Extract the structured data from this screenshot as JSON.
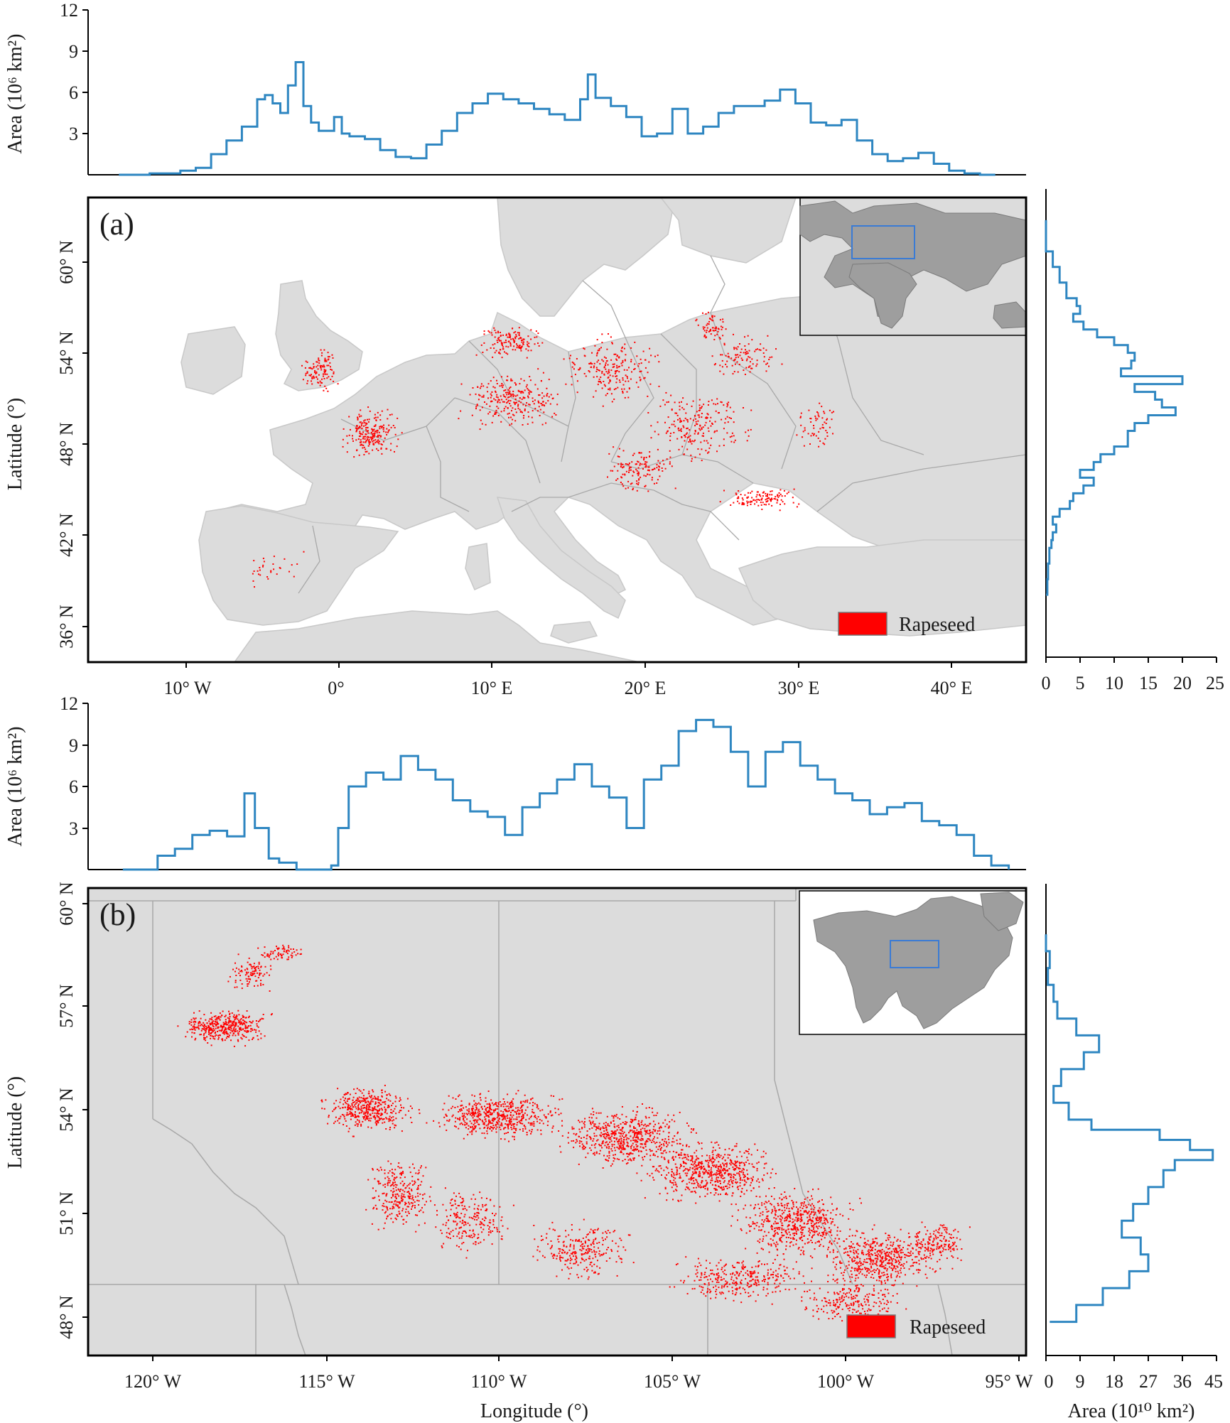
{
  "figure": {
    "panels": [
      {
        "panel_label": "(a)",
        "legend_label": "Rapeseed",
        "legend_color": "#ff0000",
        "map_lon_ticks": [
          "10° W",
          "0°",
          "10° E",
          "20° E",
          "30° E",
          "40° E"
        ],
        "map_lat_ticks": [
          "60° N",
          "54° N",
          "48° N",
          "42° N",
          "36° N"
        ],
        "map_lat_label": "Latitude (°)",
        "top_ylabel": "Area (10⁶ km²)",
        "top_yticks": [
          "3",
          "6",
          "9",
          "12"
        ],
        "right_xticks": [
          "0",
          "5",
          "10",
          "15",
          "20",
          "25"
        ],
        "inset": "world overview (Europe highlighted)"
      },
      {
        "panel_label": "(b)",
        "legend_label": "Rapeseed",
        "legend_color": "#ff0000",
        "map_lon_ticks": [
          "120° W",
          "115° W",
          "110° W",
          "105° W",
          "100° W",
          "95° W"
        ],
        "map_lat_ticks": [
          "60° N",
          "57° N",
          "54° N",
          "51° N",
          "48° N"
        ],
        "map_lat_label": "Latitude (°)",
        "map_lon_label": "Longitude (°)",
        "top_ylabel": "Area (10⁶ km²)",
        "top_yticks": [
          "3",
          "6",
          "9",
          "12"
        ],
        "right_xticks": [
          "0",
          "9",
          "18",
          "27",
          "36",
          "45"
        ],
        "right_xlabel": "Area (10¹⁰ km²)",
        "inset": "North America overview (Canadian prairies highlighted)"
      }
    ]
  },
  "chart_data": [
    {
      "type": "line",
      "panel": "(a) top — area by longitude (Europe)",
      "ylabel": "Area (10⁶ km²)",
      "xlim": [
        -16,
        45
      ],
      "ylim": [
        0,
        12
      ],
      "x": [
        -14,
        -12,
        -10,
        -9,
        -8,
        -7,
        -6,
        -5,
        -4.5,
        -4,
        -3.5,
        -3,
        -2.5,
        -2,
        -1.5,
        -1,
        0,
        0.5,
        1,
        2,
        3,
        4,
        5,
        6,
        7,
        8,
        9,
        10,
        11,
        12,
        13,
        14,
        15,
        16,
        16.5,
        17,
        18,
        19,
        20,
        21,
        22,
        23,
        24,
        25,
        26,
        27,
        28,
        29,
        30,
        31,
        32,
        33,
        34,
        35,
        36,
        37,
        38,
        39,
        40,
        41,
        42,
        43
      ],
      "series": [
        {
          "color": "#2e86c1",
          "values": [
            0,
            0.1,
            0.3,
            0.5,
            1.5,
            2.5,
            3.5,
            5.5,
            5.8,
            5.2,
            4.5,
            6.5,
            8.2,
            5,
            3.8,
            3.2,
            4.2,
            3,
            2.8,
            2.6,
            1.8,
            1.3,
            1.2,
            2.2,
            3.2,
            4.5,
            5.2,
            5.9,
            5.5,
            5.2,
            4.8,
            4.4,
            4.0,
            5.5,
            7.3,
            5.6,
            5.0,
            4.2,
            2.8,
            3.0,
            4.8,
            3.0,
            3.5,
            4.5,
            5.0,
            5.0,
            5.4,
            6.2,
            5.2,
            3.8,
            3.6,
            4.0,
            2.5,
            1.5,
            1.0,
            1.2,
            1.6,
            0.8,
            0.3,
            0.1,
            0,
            0
          ]
        }
      ]
    },
    {
      "type": "line",
      "panel": "(a) right — area by latitude (Europe)",
      "xlabel": "",
      "xlim": [
        0,
        25
      ],
      "ylim": [
        34,
        64
      ],
      "y": [
        62,
        60,
        59,
        58,
        57,
        56.5,
        56,
        55.5,
        55,
        54.5,
        54,
        53.5,
        53,
        52.5,
        52,
        51.5,
        51,
        50.5,
        50,
        49.5,
        49,
        48.5,
        48,
        47.5,
        47,
        46.5,
        46,
        45.5,
        45,
        44.5,
        44,
        43.5,
        43,
        42.5,
        42,
        41.5,
        41,
        40.5,
        40,
        39,
        38
      ],
      "series": [
        {
          "color": "#2e86c1",
          "values": [
            0,
            1,
            2,
            3,
            4.5,
            5,
            4,
            5.5,
            7.5,
            10,
            12,
            13,
            12.5,
            11,
            20,
            13,
            16,
            17,
            19,
            15,
            13,
            12,
            12,
            10,
            8,
            7,
            5,
            7,
            5.5,
            4,
            3.5,
            2,
            1,
            1.5,
            1,
            0.8,
            0.5,
            0.5,
            0.3,
            0.2,
            0
          ]
        }
      ]
    },
    {
      "type": "line",
      "panel": "(b) top — area by longitude (North America)",
      "ylabel": "Area (10⁶ km²)",
      "xlim": [
        -122,
        -95
      ],
      "ylim": [
        0,
        12
      ],
      "x": [
        -121,
        -120,
        -119.5,
        -119,
        -118.5,
        -118,
        -117.5,
        -117.2,
        -116.8,
        -116.5,
        -116,
        -115.5,
        -115,
        -114.8,
        -114.5,
        -114,
        -113.5,
        -113,
        -112.5,
        -112,
        -111.5,
        -111,
        -110.5,
        -110,
        -109.5,
        -109,
        -108.5,
        -108,
        -107.5,
        -107,
        -106.5,
        -106,
        -105.5,
        -105,
        -104.5,
        -104,
        -103.5,
        -103,
        -102.5,
        -102,
        -101.5,
        -101,
        -100.5,
        -100,
        -99.5,
        -99,
        -98.5,
        -98,
        -97.5,
        -97,
        -96.5,
        -96,
        -95.5
      ],
      "series": [
        {
          "color": "#2e86c1",
          "values": [
            0,
            1.0,
            1.5,
            2.5,
            2.8,
            2.4,
            5.5,
            3.0,
            0.8,
            0.5,
            0,
            0,
            0.3,
            3,
            6,
            7,
            6.5,
            8.2,
            7.2,
            6.5,
            5.0,
            4.2,
            3.8,
            2.5,
            4.5,
            5.5,
            6.5,
            7.6,
            6.0,
            5.2,
            3.0,
            6.5,
            7.5,
            10,
            10.8,
            10.3,
            8.5,
            6.0,
            8.5,
            9.2,
            7.5,
            6.5,
            5.5,
            5.0,
            4.0,
            4.5,
            4.8,
            3.5,
            3.2,
            2.5,
            1.0,
            0.3,
            0
          ]
        }
      ]
    },
    {
      "type": "line",
      "panel": "(b) right — area by latitude (North America)",
      "xlabel": "Area (10¹⁰ km²)",
      "xlim": [
        0,
        45
      ],
      "ylim": [
        47,
        61
      ],
      "y": [
        59.5,
        59,
        58.5,
        58,
        57.5,
        57,
        56.5,
        56,
        55.5,
        55,
        54.5,
        54,
        53.7,
        53.4,
        53.1,
        52.8,
        52.5,
        52,
        51.5,
        51,
        50.5,
        50,
        49.5,
        49,
        48.5,
        48
      ],
      "series": [
        {
          "color": "#2e86c1",
          "values": [
            0,
            1,
            0.5,
            2,
            3,
            8,
            14,
            10,
            4,
            2,
            6,
            12,
            30,
            38,
            44,
            34,
            31,
            27,
            23,
            20,
            25,
            27,
            22,
            15,
            8,
            1
          ]
        }
      ]
    }
  ]
}
